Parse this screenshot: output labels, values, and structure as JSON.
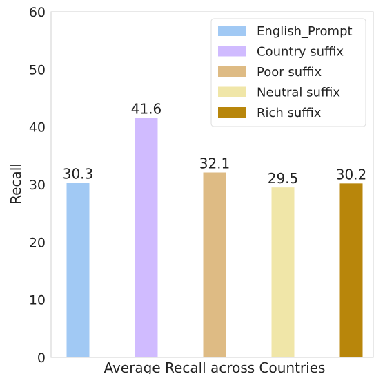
{
  "chart_data": {
    "type": "bar",
    "title": "",
    "xlabel": "Average Recall across Countries",
    "ylabel": "Recall",
    "ylim": [
      0,
      60
    ],
    "yticks": [
      0,
      10,
      20,
      30,
      40,
      50,
      60
    ],
    "grid": false,
    "legend_position": "top-right",
    "series": [
      {
        "name": "English_Prompt",
        "value": 30.3,
        "label": "30.3",
        "color": "#a1c9f4"
      },
      {
        "name": "Country suffix",
        "value": 41.6,
        "label": "41.6",
        "color": "#d0bbff"
      },
      {
        "name": "Poor suffix",
        "value": 32.1,
        "label": "32.1",
        "color": "#debb84"
      },
      {
        "name": "Neutral suffix",
        "value": 29.5,
        "label": "29.5",
        "color": "#f0e6a8"
      },
      {
        "name": "Rich suffix",
        "value": 30.2,
        "label": "30.2",
        "color": "#b8860b"
      }
    ]
  }
}
